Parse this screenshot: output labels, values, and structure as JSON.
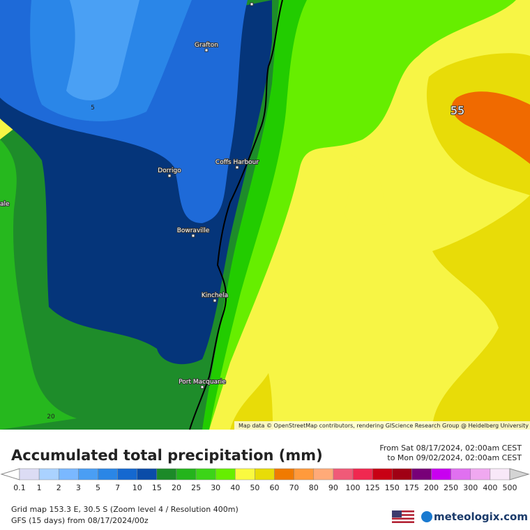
{
  "map": {
    "places": [
      "Grafton",
      "Coffs Harbour",
      "Dorrigo",
      "ale",
      "Bowraville",
      "Kinchela",
      "Port Macquarie"
    ],
    "contour_labels": [
      5,
      20,
      55
    ],
    "attribution": "Map data © OpenStreetMap contributors, rendering GIScience Research Group @ Heidelberg University"
  },
  "legend": {
    "title": "Accumulated total precipitation (mm)",
    "period": [
      "From Sat 08/17/2024, 02:00am CEST",
      "to Mon 09/02/2024, 02:00am CEST"
    ],
    "labels": [
      0.1,
      1,
      2,
      3,
      5,
      7,
      10,
      15,
      20,
      25,
      30,
      40,
      50,
      60,
      70,
      80,
      90,
      100,
      125,
      150,
      175,
      200,
      250,
      300,
      400,
      500
    ],
    "colors": [
      "#dcdcf4",
      "#aad2ff",
      "#7ab8ff",
      "#4a9ef4",
      "#2a86e6",
      "#1468d0",
      "#0a4ca8",
      "#1c8a28",
      "#24b41c",
      "#3cd418",
      "#66ee00",
      "#fafa40",
      "#e8dc08",
      "#f07a00",
      "#ff9a3c",
      "#ffaa78",
      "#f05a78",
      "#f02850",
      "#c80014",
      "#a00014",
      "#780078",
      "#c800f0",
      "#e070f0",
      "#f0a8f0",
      "#f8e8f8",
      "#d4d4d4"
    ]
  },
  "footer": {
    "grid": "Grid map 153.3 E, 30.5 S (Zoom level 4 / Resolution 400m)",
    "model": "GFS (15 days) from 08/17/2024/00z",
    "brand": "meteologix.com"
  }
}
